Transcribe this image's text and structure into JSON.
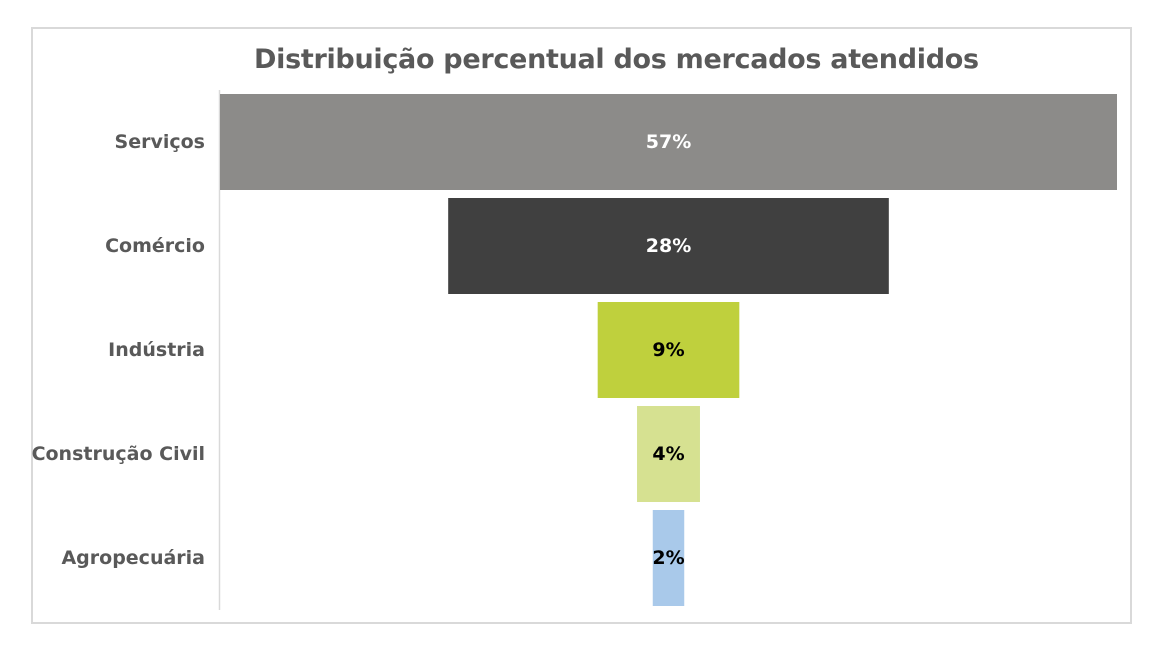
{
  "chart_data": {
    "type": "bar",
    "subtype": "funnel",
    "title": "Distribuição percentual dos mercados atendidos",
    "categories": [
      "Serviços",
      "Comércio",
      "Indústria",
      "Construção Civil",
      "Agropecuária"
    ],
    "values": [
      57,
      28,
      9,
      4,
      2
    ],
    "value_labels": [
      "57%",
      "28%",
      "9%",
      "4%",
      "2%"
    ],
    "bar_colors": [
      "#8c8b89",
      "#404040",
      "#bfd03d",
      "#d6e191",
      "#a9c9ea"
    ],
    "label_colors": [
      "#ffffff",
      "#ffffff",
      "#000000",
      "#000000",
      "#000000"
    ],
    "xlabel": "",
    "ylabel": "",
    "grid": false,
    "legend": "none"
  }
}
